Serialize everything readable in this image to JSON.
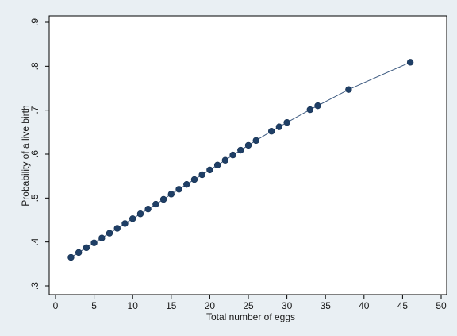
{
  "chart_data": {
    "type": "line",
    "title": "",
    "xlabel": "Total number of eggs",
    "ylabel": "Probability of a live birth",
    "xlim": [
      0,
      50
    ],
    "ylim": [
      0.3,
      0.9
    ],
    "x_ticks": [
      0,
      5,
      10,
      15,
      20,
      25,
      30,
      35,
      40,
      45,
      50
    ],
    "x_tick_labels": [
      "0",
      "5",
      "10",
      "15",
      "20",
      "25",
      "30",
      "35",
      "40",
      "45",
      "50"
    ],
    "y_ticks": [
      0.3,
      0.4,
      0.5,
      0.6,
      0.7,
      0.8,
      0.9
    ],
    "y_tick_labels": [
      ".3",
      ".4",
      ".5",
      ".6",
      ".7",
      ".8",
      ".9"
    ],
    "grid": false,
    "legend": "none",
    "series": [
      {
        "marker": "filled-circle",
        "color": "#1f3f66",
        "x": [
          2,
          3,
          4,
          5,
          6,
          7,
          8,
          9,
          10,
          11,
          12,
          13,
          14,
          15,
          16,
          17,
          18,
          19,
          20,
          21,
          22,
          23,
          24,
          25,
          26,
          28,
          29,
          30,
          33,
          34,
          38,
          46
        ],
        "y": [
          0.365,
          0.376,
          0.387,
          0.398,
          0.409,
          0.42,
          0.431,
          0.442,
          0.453,
          0.464,
          0.475,
          0.486,
          0.497,
          0.509,
          0.52,
          0.531,
          0.542,
          0.553,
          0.564,
          0.575,
          0.586,
          0.598,
          0.609,
          0.62,
          0.631,
          0.652,
          0.662,
          0.672,
          0.701,
          0.71,
          0.747,
          0.809
        ]
      }
    ]
  },
  "colors": {
    "background": "#e9eff3",
    "plot_area": "#ffffff",
    "marker": "#1f3f66",
    "line": "#3d5a80"
  }
}
